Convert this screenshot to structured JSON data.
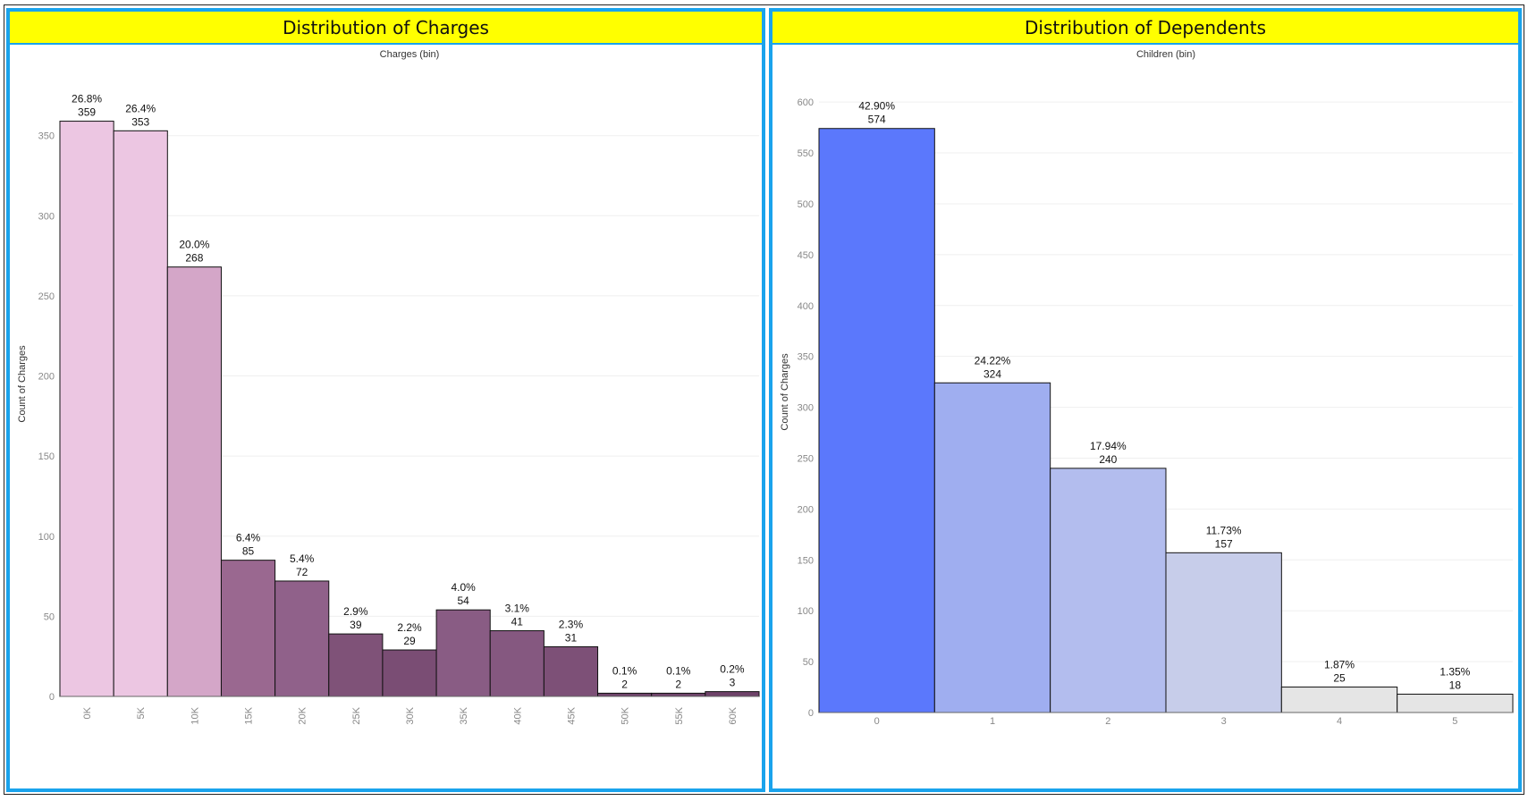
{
  "charts": [
    {
      "title": "Distribution of Charges",
      "chart_data": {
        "type": "bar",
        "title": "Distribution of Charges",
        "xlabel": "Charges (bin)",
        "ylabel": "Count of Charges",
        "ylim": [
          0,
          390
        ],
        "yticks": [
          0,
          50,
          100,
          150,
          200,
          250,
          300,
          350
        ],
        "categories": [
          "0K",
          "5K",
          "10K",
          "15K",
          "20K",
          "25K",
          "30K",
          "35K",
          "40K",
          "45K",
          "50K",
          "55K",
          "60K"
        ],
        "values": [
          359,
          353,
          268,
          85,
          72,
          39,
          29,
          54,
          41,
          31,
          2,
          2,
          3
        ],
        "percent_labels": [
          "26.8%",
          "26.4%",
          "20.0%",
          "6.4%",
          "5.4%",
          "2.9%",
          "2.2%",
          "4.0%",
          "3.1%",
          "2.3%",
          "0.1%",
          "0.1%",
          "0.2%"
        ],
        "colors": [
          "#ecc6e2",
          "#ecc6e2",
          "#d4a6c8",
          "#9a6890",
          "#90618a",
          "#7f5278",
          "#7a4d74",
          "#895c84",
          "#855880",
          "#7d5077",
          "#6f436a",
          "#6f436a",
          "#6f436a"
        ],
        "tick_labels_rotated": true,
        "grid": true
      }
    },
    {
      "title": "Distribution of Dependents",
      "chart_data": {
        "type": "bar",
        "title": "Distribution of Dependents",
        "xlabel": "Children (bin)",
        "ylabel": "Count of Charges",
        "ylim": [
          0,
          630
        ],
        "yticks": [
          0,
          50,
          100,
          150,
          200,
          250,
          300,
          350,
          400,
          450,
          500,
          550,
          600
        ],
        "categories": [
          "0",
          "1",
          "2",
          "3",
          "4",
          "5"
        ],
        "values": [
          574,
          324,
          240,
          157,
          25,
          18
        ],
        "percent_labels": [
          "42.90%",
          "24.22%",
          "17.94%",
          "11.73%",
          "1.87%",
          "1.35%"
        ],
        "colors": [
          "#5b78fc",
          "#9faef0",
          "#b3bdee",
          "#c7cdea",
          "#e5e5e5",
          "#e5e5e5"
        ],
        "tick_labels_rotated": false,
        "grid": true
      }
    }
  ]
}
